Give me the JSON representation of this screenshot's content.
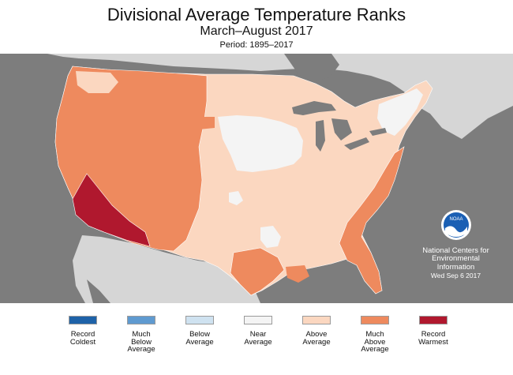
{
  "header": {
    "title": "Divisional Average Temperature Ranks",
    "subtitle": "March–August 2017",
    "period": "Period: 1895–2017"
  },
  "credit": {
    "logo_text": "NOAA",
    "line1": "National Centers for",
    "line2": "Environmental",
    "line3": "Information",
    "line4": "Wed Sep  6 2017"
  },
  "legend": [
    {
      "label": "Record\nColdest",
      "color": "#1e62a8"
    },
    {
      "label": "Much\nBelow\nAverage",
      "color": "#5f9ad0"
    },
    {
      "label": "Below\nAverage",
      "color": "#cfe2f0"
    },
    {
      "label": "Near\nAverage",
      "color": "#f4f4f4"
    },
    {
      "label": "Above\nAverage",
      "color": "#fbd7c0"
    },
    {
      "label": "Much\nAbove\nAverage",
      "color": "#ee8a5e"
    },
    {
      "label": "Record\nWarmest",
      "color": "#b0182e"
    }
  ],
  "colors": {
    "ocean": "#7d7d7d",
    "land_outside": "#d6d6d6",
    "record_warmest": "#b0182e",
    "much_above": "#ee8a5e",
    "above": "#fbd7c0",
    "near": "#f4f4f4"
  }
}
